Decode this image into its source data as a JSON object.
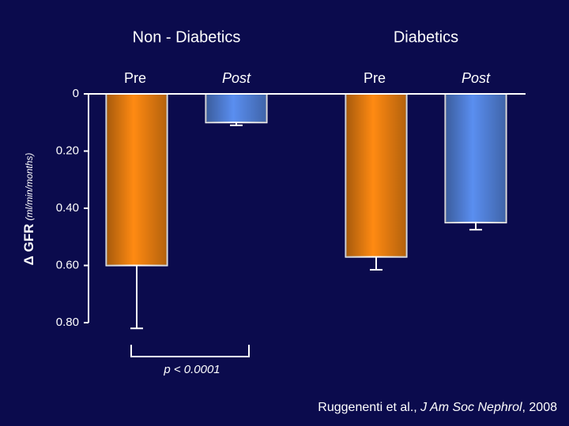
{
  "chart_data": {
    "type": "bar",
    "categories": [
      "Non - Diabetics",
      "Diabetics"
    ],
    "series": [
      {
        "name": "Pre",
        "color": "#ff8a12",
        "values": [
          -0.6,
          -0.57
        ],
        "errors": [
          0.22,
          0.045
        ]
      },
      {
        "name": "Post",
        "color": "#5a8ef0",
        "values": [
          -0.1,
          -0.45
        ],
        "errors": [
          0.01,
          0.025
        ]
      }
    ],
    "y_label": {
      "symbol": "Δ GFR",
      "units": "(ml/min/months)"
    },
    "ylim": [
      0,
      -0.8
    ],
    "yticks": [
      0,
      {
        "value": -0.2,
        "label": "0.20"
      },
      {
        "value": -0.4,
        "label": "0.40"
      },
      {
        "value": -0.6,
        "label": "0.60"
      },
      {
        "value": -0.8,
        "label": "0.80"
      }
    ],
    "annotation": "p < 0.0001",
    "source": {
      "authors": "Ruggenenti et al., ",
      "journal": "J Am Soc Nephrol",
      "year": ", 2008"
    }
  }
}
